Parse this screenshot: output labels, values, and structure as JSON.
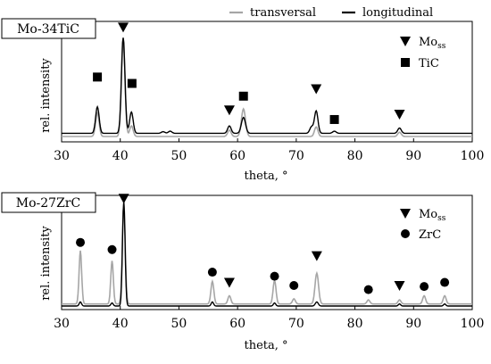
{
  "legend": {
    "transversal": {
      "label": "transversal",
      "color": "#a6a6a6"
    },
    "longitudinal": {
      "label": "longitudinal",
      "color": "#000000"
    }
  },
  "chart_data": [
    {
      "type": "line",
      "sample_label": "Mo-34TiC",
      "xlabel": "theta, °",
      "ylabel": "rel. intensity",
      "xlim": [
        30,
        100
      ],
      "xticks": [
        30,
        40,
        50,
        60,
        70,
        80,
        90,
        100
      ],
      "ylim": [
        0,
        1
      ],
      "series": [
        {
          "name": "transversal",
          "color": "#a6a6a6",
          "baseline": 0.0,
          "peaks": [
            [
              36.1,
              0.22,
              0.3
            ],
            [
              40.5,
              0.93,
              0.3
            ],
            [
              41.9,
              0.1,
              0.3
            ],
            [
              58.6,
              0.06,
              0.3
            ],
            [
              61.0,
              0.26,
              0.35
            ],
            [
              73.4,
              0.09,
              0.3
            ],
            [
              87.6,
              0.04,
              0.3
            ]
          ]
        },
        {
          "name": "longitudinal",
          "color": "#000000",
          "baseline": 0.03,
          "peaks": [
            [
              36.1,
              0.25,
              0.3
            ],
            [
              40.5,
              0.9,
              0.3
            ],
            [
              41.9,
              0.2,
              0.3
            ],
            [
              47.3,
              0.015,
              0.3
            ],
            [
              48.5,
              0.02,
              0.3
            ],
            [
              58.6,
              0.07,
              0.3
            ],
            [
              61.0,
              0.15,
              0.35
            ],
            [
              72.6,
              0.06,
              0.3
            ],
            [
              73.4,
              0.21,
              0.3
            ],
            [
              76.5,
              0.02,
              0.3
            ],
            [
              87.6,
              0.05,
              0.3
            ]
          ]
        }
      ],
      "annotations": [
        {
          "symbol": "square",
          "theta": 36.1,
          "level": 0.56
        },
        {
          "symbol": "triangle",
          "theta": 40.5,
          "level": 1.03
        },
        {
          "symbol": "square",
          "theta": 42.0,
          "level": 0.5
        },
        {
          "symbol": "triangle",
          "theta": 58.6,
          "level": 0.25
        },
        {
          "symbol": "square",
          "theta": 61.0,
          "level": 0.38
        },
        {
          "symbol": "triangle",
          "theta": 73.4,
          "level": 0.45
        },
        {
          "symbol": "square",
          "theta": 76.5,
          "level": 0.16
        },
        {
          "symbol": "triangle",
          "theta": 87.6,
          "level": 0.21
        }
      ],
      "marker_legend": [
        {
          "symbol": "triangle",
          "label": "Mo",
          "sub": "ss"
        },
        {
          "symbol": "square",
          "label": "TiC",
          "sub": ""
        }
      ]
    },
    {
      "type": "line",
      "sample_label": "Mo-27ZrC",
      "xlabel": "theta, °",
      "ylabel": "rel. intensity",
      "xlim": [
        30,
        100
      ],
      "xticks": [
        30,
        40,
        50,
        60,
        70,
        80,
        90,
        100
      ],
      "ylim": [
        0,
        1
      ],
      "series": [
        {
          "name": "transversal",
          "color": "#a6a6a6",
          "baseline": 0.02,
          "peaks": [
            [
              33.2,
              0.52,
              0.22
            ],
            [
              38.6,
              0.42,
              0.22
            ],
            [
              40.6,
              0.98,
              0.25
            ],
            [
              55.7,
              0.22,
              0.25
            ],
            [
              58.6,
              0.08,
              0.25
            ],
            [
              66.3,
              0.23,
              0.25
            ],
            [
              69.6,
              0.05,
              0.25
            ],
            [
              73.5,
              0.3,
              0.3
            ],
            [
              82.3,
              0.04,
              0.25
            ],
            [
              87.6,
              0.04,
              0.25
            ],
            [
              91.8,
              0.08,
              0.25
            ],
            [
              95.3,
              0.08,
              0.25
            ]
          ]
        },
        {
          "name": "longitudinal",
          "color": "#000000",
          "baseline": 0.0,
          "peaks": [
            [
              33.2,
              0.04,
              0.2
            ],
            [
              38.6,
              0.03,
              0.2
            ],
            [
              40.6,
              1.02,
              0.22
            ],
            [
              55.7,
              0.04,
              0.2
            ],
            [
              66.3,
              0.03,
              0.2
            ],
            [
              73.5,
              0.04,
              0.25
            ],
            [
              87.6,
              0.02,
              0.2
            ],
            [
              95.3,
              0.02,
              0.2
            ]
          ]
        }
      ],
      "annotations": [
        {
          "symbol": "circle",
          "theta": 33.2,
          "level": 0.62
        },
        {
          "symbol": "circle",
          "theta": 38.6,
          "level": 0.55
        },
        {
          "symbol": "triangle",
          "theta": 40.6,
          "level": 1.05
        },
        {
          "symbol": "circle",
          "theta": 55.7,
          "level": 0.33
        },
        {
          "symbol": "triangle",
          "theta": 58.6,
          "level": 0.23
        },
        {
          "symbol": "circle",
          "theta": 66.3,
          "level": 0.29
        },
        {
          "symbol": "circle",
          "theta": 69.6,
          "level": 0.2
        },
        {
          "symbol": "triangle",
          "theta": 73.5,
          "level": 0.49
        },
        {
          "symbol": "circle",
          "theta": 82.3,
          "level": 0.16
        },
        {
          "symbol": "triangle",
          "theta": 87.6,
          "level": 0.2
        },
        {
          "symbol": "circle",
          "theta": 91.8,
          "level": 0.19
        },
        {
          "symbol": "circle",
          "theta": 95.3,
          "level": 0.23
        }
      ],
      "marker_legend": [
        {
          "symbol": "triangle",
          "label": "Mo",
          "sub": "ss"
        },
        {
          "symbol": "circle",
          "label": "ZrC",
          "sub": ""
        }
      ]
    }
  ]
}
